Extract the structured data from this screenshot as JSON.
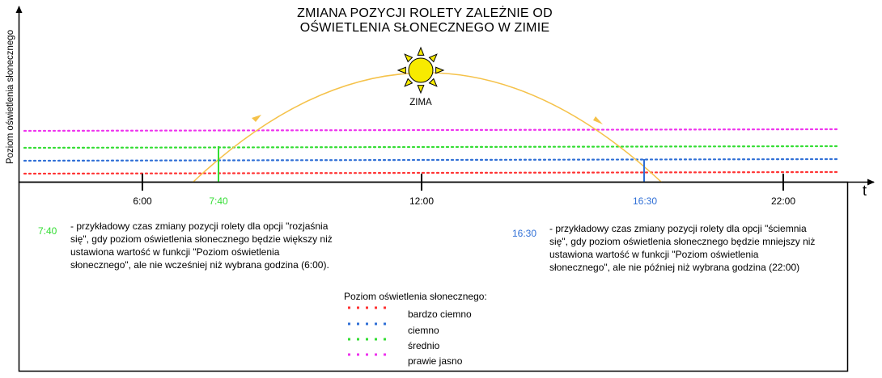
{
  "title": {
    "line1": "ZMIANA POZYCJI ROLETY ZALEŻNIE OD",
    "line2": "OŚWIETLENIA SŁONECZNEGO W ZIMIE"
  },
  "axis": {
    "y_label": "Poziom oświetlenia słonecznego",
    "x_label": "t",
    "ticks": [
      "6:00",
      "7:40",
      "12:00",
      "16:30",
      "22:00"
    ]
  },
  "sun": {
    "label": "ZIMA",
    "color": "#f7ea00",
    "path_color": "#f5c24a"
  },
  "colors": {
    "bardzo_ciemno": "#ff3333",
    "ciemno": "#2f6fd6",
    "srednio": "#33dd33",
    "prawie_jasno": "#ee33ee",
    "open_marker": "#33dd33",
    "close_marker": "#2f6fd6",
    "time_open": "#33dd33",
    "time_close": "#2f6fd6"
  },
  "notes": {
    "open": {
      "time": "7:40",
      "lines": [
        "- przykładowy czas zmiany pozycji rolety dla opcji \"rozjaśnia",
        "się\", gdy poziom oświetlenia słonecznego będzie większy niż",
        "ustawiona wartość w funkcji \"Poziom oświetlenia",
        "słonecznego\", ale nie wcześniej niż wybrana godzina (6:00)."
      ]
    },
    "close": {
      "time": "16:30",
      "lines": [
        "- przykładowy czas zmiany pozycji rolety dla opcji \"ściemnia",
        "się\", gdy poziom oświetlenia słonecznego będzie mniejszy niż",
        "ustawiona wartość w funkcji \"Poziom oświetlenia",
        "słonecznego\", ale nie później niż wybrana godzina (22:00)"
      ]
    }
  },
  "legend": {
    "title": "Poziom oświetlenia słonecznego:",
    "items": [
      {
        "label": "bardzo ciemno",
        "color": "#ff3333"
      },
      {
        "label": "ciemno",
        "color": "#2f6fd6"
      },
      {
        "label": "średnio",
        "color": "#33dd33"
      },
      {
        "label": "prawie jasno",
        "color": "#ee33ee"
      }
    ]
  }
}
